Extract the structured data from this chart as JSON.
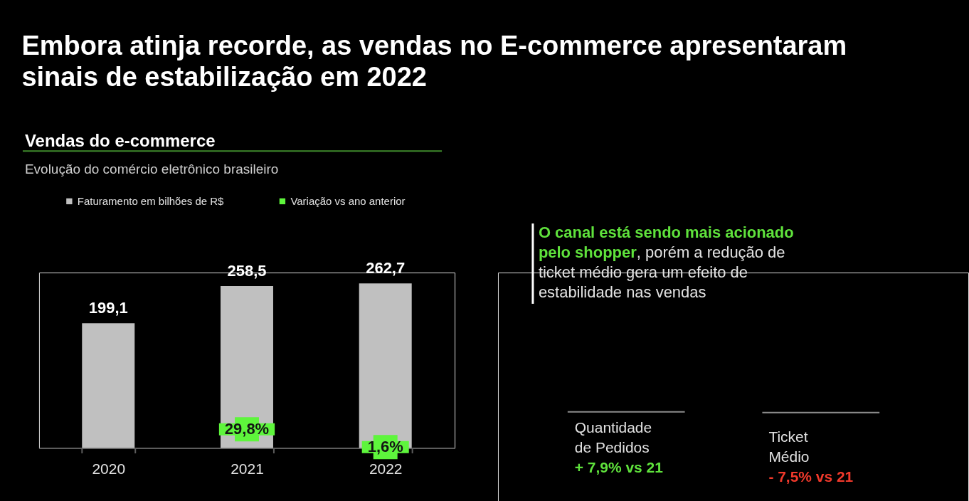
{
  "chart_data": [
    {
      "type": "bar",
      "title": "Embora atinja recorde, as vendas no E-commerce apresentaram sinais de estabilização em 2022",
      "subtitle": "Vendas do e-commerce",
      "annotations": [
        "Evolução do comércio eletrônico brasileiro"
      ],
      "categories": [
        "2020",
        "2021",
        "2022"
      ],
      "series": [
        {
          "name": "Faturamento em bilhões de R$",
          "color": "#c0c0c0",
          "values": [
            199.1,
            258.5,
            262.7
          ],
          "value_labels": [
            "199,1",
            "258,5",
            "262,7"
          ]
        },
        {
          "name": "Variação vs ano anterior",
          "color": "#5ef53c",
          "type": "scatter",
          "marker": "square",
          "values": [
            null,
            29.8,
            1.6
          ],
          "value_labels": [
            null,
            "29,8%",
            "1,6%"
          ]
        }
      ],
      "legend": "top",
      "tick_labels": "x"
    },
    {
      "type": "other",
      "annotations": [
        "O canal está sendo mais acionado",
        "pelo shopper",
        ", porém a redução de",
        "ticket médio gera um efeito de estabilidade nas vendas",
        "Quantidade de Pedidos",
        "+ 7,9% vs 21",
        "Ticket Médio",
        "- 7,5% vs 21"
      ]
    }
  ]
}
